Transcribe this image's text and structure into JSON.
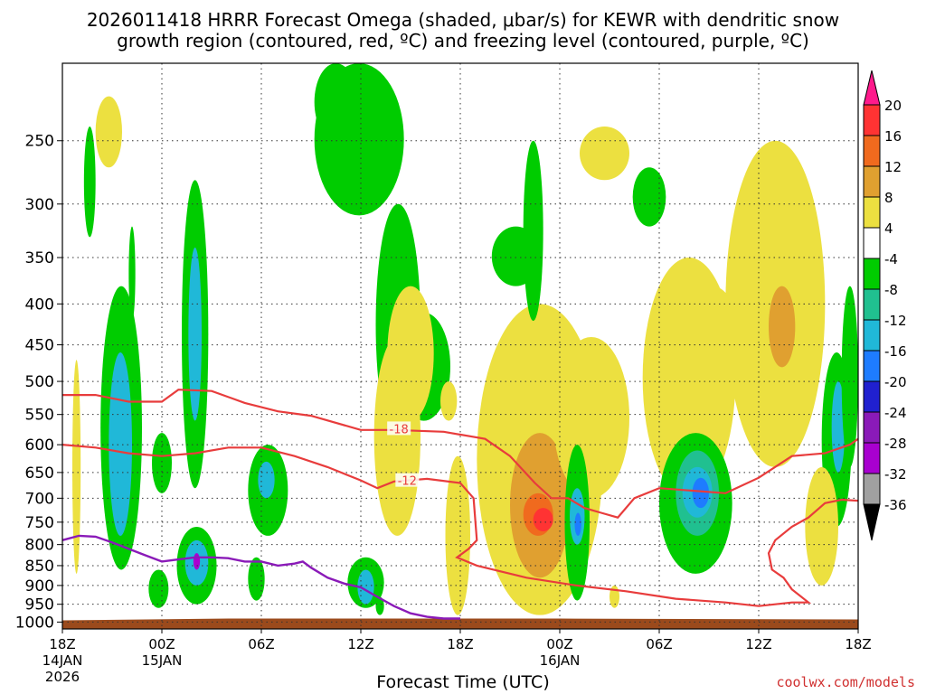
{
  "title_line1": "2026011418 HRRR Forecast Omega (shaded, μbar/s) for KEWR with dendritic snow",
  "title_line2": "growth region (contoured, red, ºC) and freezing level (contoured, purple, ºC)",
  "xlabel": "Forecast Time (UTC)",
  "credit": "coolwx.com/models",
  "chart_data": {
    "type": "heatmap",
    "title": "2026011418 HRRR Forecast Omega (shaded, μbar/s) for KEWR with dendritic snow growth region (contoured, red, ºC) and freezing level (contoured, purple, ºC)",
    "xlabel": "Forecast Time (UTC)",
    "ylabel": "",
    "x_ticks": [
      {
        "hour": 0,
        "label": "18Z",
        "sub": [
          "14JAN",
          "2026"
        ]
      },
      {
        "hour": 6,
        "label": "00Z",
        "sub": [
          "15JAN"
        ]
      },
      {
        "hour": 12,
        "label": "06Z",
        "sub": []
      },
      {
        "hour": 18,
        "label": "12Z",
        "sub": []
      },
      {
        "hour": 24,
        "label": "18Z",
        "sub": []
      },
      {
        "hour": 30,
        "label": "00Z",
        "sub": [
          "16JAN"
        ]
      },
      {
        "hour": 36,
        "label": "06Z",
        "sub": []
      },
      {
        "hour": 42,
        "label": "12Z",
        "sub": []
      },
      {
        "hour": 48,
        "label": "18Z",
        "sub": []
      }
    ],
    "xlim": [
      0,
      48
    ],
    "y_ticks": [
      250,
      300,
      350,
      400,
      450,
      500,
      550,
      600,
      650,
      700,
      750,
      800,
      850,
      900,
      950,
      1000
    ],
    "ylim": [
      200,
      1020
    ],
    "y_scale": "log",
    "colorbar": {
      "labels": [
        "20",
        "16",
        "12",
        "8",
        "4",
        "-4",
        "-8",
        "-12",
        "-16",
        "-20",
        "-24",
        "-28",
        "-32",
        "-36"
      ],
      "colors": [
        "#ff1a8c",
        "#ff3333",
        "#f06a1e",
        "#e0a030",
        "#ece040",
        "#ffffff",
        "#00cc00",
        "#20c090",
        "#20b8d8",
        "#1e7cff",
        "#2020d0",
        "#8a1ab8",
        "#a800d0",
        "#a0a0a0",
        "#000000"
      ]
    },
    "omega_regions": [
      {
        "hours": [
          1.3,
          2.0
        ],
        "p": [
          240,
          330
        ],
        "value": -6
      },
      {
        "hours": [
          2.3,
          4.8
        ],
        "p": [
          380,
          860
        ],
        "value": -6
      },
      {
        "hours": [
          2.8,
          4.2
        ],
        "p": [
          460,
          780
        ],
        "value": -12
      },
      {
        "hours": [
          3.1,
          3.7
        ],
        "p": [
          560,
          700
        ],
        "value": -15
      },
      {
        "hours": [
          2.0,
          3.6
        ],
        "p": [
          220,
          270
        ],
        "value": 5
      },
      {
        "hours": [
          0.6,
          1.1
        ],
        "p": [
          470,
          870
        ],
        "value": 5
      },
      {
        "hours": [
          4.0,
          4.4
        ],
        "p": [
          320,
          420
        ],
        "value": -6
      },
      {
        "hours": [
          5.4,
          6.6
        ],
        "p": [
          580,
          690
        ],
        "value": -6
      },
      {
        "hours": [
          5.2,
          6.4
        ],
        "p": [
          860,
          960
        ],
        "value": -6
      },
      {
        "hours": [
          7.2,
          8.8
        ],
        "p": [
          280,
          680
        ],
        "value": -6
      },
      {
        "hours": [
          7.6,
          8.4
        ],
        "p": [
          340,
          560
        ],
        "value": -12
      },
      {
        "hours": [
          6.9,
          9.3
        ],
        "p": [
          760,
          950
        ],
        "value": -6
      },
      {
        "hours": [
          7.4,
          8.8
        ],
        "p": [
          790,
          900
        ],
        "value": -14
      },
      {
        "hours": [
          7.9,
          8.3
        ],
        "p": [
          820,
          860
        ],
        "value": -30
      },
      {
        "hours": [
          11.2,
          13.6
        ],
        "p": [
          600,
          780
        ],
        "value": -6
      },
      {
        "hours": [
          11.8,
          12.8
        ],
        "p": [
          630,
          700
        ],
        "value": -12
      },
      {
        "hours": [
          11.2,
          12.2
        ],
        "p": [
          830,
          940
        ],
        "value": -6
      },
      {
        "hours": [
          15.2,
          20.6
        ],
        "p": [
          200,
          310
        ],
        "value": -6
      },
      {
        "hours": [
          15.2,
          17.8
        ],
        "p": [
          200,
          250
        ],
        "value": -6
      },
      {
        "hours": [
          18.9,
          21.6
        ],
        "p": [
          300,
          600
        ],
        "value": -6
      },
      {
        "hours": [
          20.2,
          23.4
        ],
        "p": [
          410,
          560
        ],
        "value": -6
      },
      {
        "hours": [
          22.8,
          23.8
        ],
        "p": [
          500,
          560
        ],
        "value": 5
      },
      {
        "hours": [
          19.6,
          22.4
        ],
        "p": [
          380,
          560
        ],
        "value": 5
      },
      {
        "hours": [
          18.8,
          21.6
        ],
        "p": [
          440,
          780
        ],
        "value": 5
      },
      {
        "hours": [
          17.2,
          19.4
        ],
        "p": [
          830,
          960
        ],
        "value": -6
      },
      {
        "hours": [
          17.8,
          18.8
        ],
        "p": [
          860,
          950
        ],
        "value": -14
      },
      {
        "hours": [
          18.9,
          19.4
        ],
        "p": [
          930,
          980
        ],
        "value": -5
      },
      {
        "hours": [
          23.1,
          24.6
        ],
        "p": [
          620,
          980
        ],
        "value": 5
      },
      {
        "hours": [
          25.0,
          32.6
        ],
        "p": [
          400,
          980
        ],
        "value": 5
      },
      {
        "hours": [
          26.0,
          31.4
        ],
        "p": [
          530,
          930
        ],
        "value": 9
      },
      {
        "hours": [
          27.0,
          30.6
        ],
        "p": [
          580,
          880
        ],
        "value": 12
      },
      {
        "hours": [
          27.8,
          29.6
        ],
        "p": [
          690,
          780
        ],
        "value": 16
      },
      {
        "hours": [
          28.4,
          29.6
        ],
        "p": [
          720,
          770
        ],
        "value": 18
      },
      {
        "hours": [
          25.9,
          28.8
        ],
        "p": [
          320,
          380
        ],
        "value": -6
      },
      {
        "hours": [
          27.8,
          29.0
        ],
        "p": [
          250,
          420
        ],
        "value": -6
      },
      {
        "hours": [
          29.6,
          34.2
        ],
        "p": [
          440,
          700
        ],
        "value": 5
      },
      {
        "hours": [
          30.3,
          31.8
        ],
        "p": [
          600,
          940
        ],
        "value": -6
      },
      {
        "hours": [
          30.6,
          31.5
        ],
        "p": [
          680,
          800
        ],
        "value": -14
      },
      {
        "hours": [
          30.9,
          31.3
        ],
        "p": [
          730,
          780
        ],
        "value": -18
      },
      {
        "hours": [
          31.2,
          34.2
        ],
        "p": [
          240,
          280
        ],
        "value": 5
      },
      {
        "hours": [
          34.4,
          36.4
        ],
        "p": [
          270,
          320
        ],
        "value": -6
      },
      {
        "hours": [
          35.0,
          40.6
        ],
        "p": [
          350,
          700
        ],
        "value": 5
      },
      {
        "hours": [
          36.4,
          38.6
        ],
        "p": [
          410,
          560
        ],
        "value": 8
      },
      {
        "hours": [
          37.8,
          40.6
        ],
        "p": [
          380,
          470
        ],
        "value": 8
      },
      {
        "hours": [
          36.0,
          40.4
        ],
        "p": [
          580,
          870
        ],
        "value": -6
      },
      {
        "hours": [
          37.0,
          39.6
        ],
        "p": [
          610,
          780
        ],
        "value": -10
      },
      {
        "hours": [
          37.4,
          39.2
        ],
        "p": [
          640,
          740
        ],
        "value": -14
      },
      {
        "hours": [
          38.0,
          39.0
        ],
        "p": [
          660,
          720
        ],
        "value": -17
      },
      {
        "hours": [
          40.0,
          46.0
        ],
        "p": [
          250,
          640
        ],
        "value": 5
      },
      {
        "hours": [
          41.8,
          44.6
        ],
        "p": [
          320,
          560
        ],
        "value": 8
      },
      {
        "hours": [
          42.6,
          44.2
        ],
        "p": [
          380,
          480
        ],
        "value": 11
      },
      {
        "hours": [
          45.8,
          47.6
        ],
        "p": [
          460,
          760
        ],
        "value": -6
      },
      {
        "hours": [
          46.4,
          47.2
        ],
        "p": [
          500,
          650
        ],
        "value": -12
      },
      {
        "hours": [
          47.0,
          48.0
        ],
        "p": [
          380,
          640
        ],
        "value": -6
      },
      {
        "hours": [
          44.8,
          46.8
        ],
        "p": [
          640,
          900
        ],
        "value": 5
      },
      {
        "hours": [
          33.0,
          33.6
        ],
        "p": [
          900,
          960
        ],
        "value": 5
      }
    ],
    "dgz_contours": [
      {
        "label": "-18",
        "label_at": [
          20.3,
          573
        ],
        "points": [
          [
            0,
            520
          ],
          [
            2,
            520
          ],
          [
            4,
            530
          ],
          [
            6,
            530
          ],
          [
            7,
            512
          ],
          [
            9,
            514
          ],
          [
            11,
            532
          ],
          [
            13,
            545
          ],
          [
            15,
            552
          ],
          [
            18,
            575
          ],
          [
            20,
            575
          ],
          [
            23,
            578
          ],
          [
            25.5,
            590
          ],
          [
            27,
            620
          ],
          [
            28.5,
            670
          ],
          [
            29.5,
            700
          ],
          [
            30.5,
            700
          ],
          [
            31.5,
            720
          ],
          [
            32.5,
            730
          ],
          [
            33.5,
            740
          ],
          [
            34.5,
            700
          ],
          [
            36,
            680
          ],
          [
            38,
            685
          ],
          [
            40,
            690
          ],
          [
            42,
            660
          ],
          [
            44,
            620
          ],
          [
            46,
            615
          ],
          [
            47.5,
            600
          ],
          [
            48,
            590
          ]
        ]
      },
      {
        "label": "-12",
        "label_at": [
          20.8,
          665
        ],
        "points": [
          [
            0,
            600
          ],
          [
            2,
            605
          ],
          [
            4,
            615
          ],
          [
            6,
            620
          ],
          [
            8,
            615
          ],
          [
            10,
            605
          ],
          [
            12,
            605
          ],
          [
            14,
            620
          ],
          [
            16,
            640
          ],
          [
            18,
            665
          ],
          [
            19,
            680
          ],
          [
            20,
            667
          ],
          [
            22,
            662
          ],
          [
            24,
            670
          ],
          [
            24.8,
            700
          ],
          [
            25,
            790
          ],
          [
            24.5,
            810
          ],
          [
            23.8,
            830
          ],
          [
            25,
            850
          ],
          [
            28,
            880
          ],
          [
            31,
            900
          ],
          [
            34,
            915
          ],
          [
            37,
            935
          ],
          [
            40,
            945
          ],
          [
            42,
            955
          ],
          [
            44,
            945
          ],
          [
            45,
            945
          ],
          [
            44,
            910
          ],
          [
            43.5,
            880
          ],
          [
            42.8,
            860
          ],
          [
            42.6,
            820
          ],
          [
            43,
            790
          ],
          [
            44,
            760
          ],
          [
            45,
            740
          ],
          [
            46,
            710
          ],
          [
            47,
            703
          ],
          [
            48,
            705
          ]
        ]
      }
    ],
    "freezing_level": {
      "points": [
        [
          0,
          790
        ],
        [
          1,
          780
        ],
        [
          2,
          782
        ],
        [
          3,
          795
        ],
        [
          4,
          810
        ],
        [
          5,
          825
        ],
        [
          6,
          840
        ],
        [
          7,
          835
        ],
        [
          8,
          830
        ],
        [
          9,
          830
        ],
        [
          10,
          832
        ],
        [
          11,
          840
        ],
        [
          12,
          840
        ],
        [
          13,
          850
        ],
        [
          14,
          845
        ],
        [
          14.5,
          840
        ],
        [
          15,
          855
        ],
        [
          16,
          880
        ],
        [
          17,
          895
        ],
        [
          18,
          905
        ],
        [
          19,
          930
        ],
        [
          20,
          955
        ],
        [
          21,
          975
        ],
        [
          22,
          985
        ],
        [
          23,
          990
        ],
        [
          24,
          990
        ]
      ]
    },
    "terrain": {
      "p_top": 990,
      "color": "#9b4a1c"
    }
  }
}
